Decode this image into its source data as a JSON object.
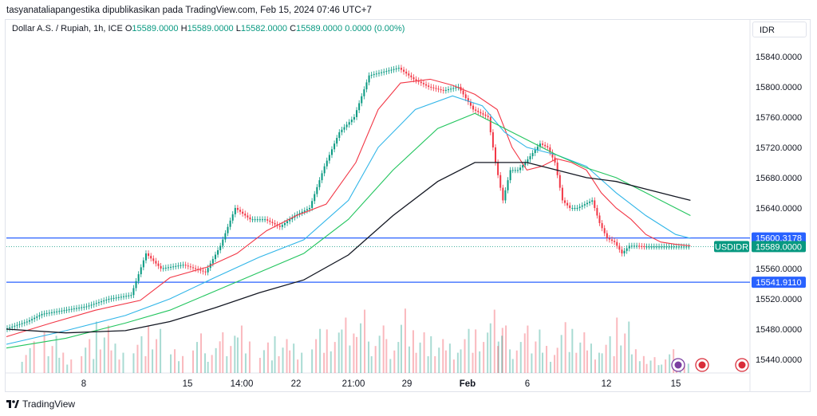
{
  "header": {
    "publisher": "tasyanataliapangestika dipublikasikan pada TradingView.com, Feb 15, 2024 07:46 UTC+7"
  },
  "legend": {
    "symbol": "Dollar A.S. / Rupiah, 1h, ICE",
    "open_label": "O",
    "open": "15589.0000",
    "high_label": "H",
    "high": "15589.0000",
    "low_label": "L",
    "low": "15582.0000",
    "close_label": "C",
    "close": "15589.0000",
    "change": "0.0000 (0.00%)"
  },
  "currency": "IDR",
  "footer": {
    "brand": "TradingView"
  },
  "colors": {
    "up": "#089981",
    "down": "#f23645",
    "ema_fast": "#f23645",
    "ema_mid": "#2fb5e8",
    "ema_slow": "#22c55e",
    "ema_long": "#131722",
    "hline": "#2962ff"
  },
  "chart_data": {
    "type": "line",
    "y_ticks": [
      "15840.0000",
      "15800.0000",
      "15760.0000",
      "15720.0000",
      "15680.0000",
      "15640.0000",
      "15600.0000",
      "15560.0000",
      "15520.0000",
      "15480.0000",
      "15440.0000"
    ],
    "x_ticks": [
      "8",
      "15",
      "14:00",
      "22",
      "21:00",
      "29",
      "Feb",
      "6",
      "12",
      "15"
    ],
    "ylim": [
      15420,
      15862
    ],
    "price_badges": [
      {
        "label": "15600.3178",
        "value": 15600.3178,
        "kind": "hline"
      },
      {
        "label": "USDIDR",
        "value": 15589
      },
      {
        "label": "15589.0000",
        "value": 15589,
        "kind": "last"
      },
      {
        "label": "15541.9110",
        "value": 15541.911,
        "kind": "hline"
      }
    ],
    "hlines": [
      15600.3178,
      15541.911
    ],
    "series": [
      {
        "role": "price",
        "x": [
          0,
          0.03,
          0.05,
          0.08,
          0.11,
          0.14,
          0.17,
          0.19,
          0.21,
          0.24,
          0.27,
          0.29,
          0.31,
          0.33,
          0.35,
          0.37,
          0.39,
          0.41,
          0.43,
          0.45,
          0.47,
          0.49,
          0.51,
          0.53,
          0.55,
          0.57,
          0.59,
          0.61,
          0.63,
          0.65,
          0.66,
          0.67,
          0.68,
          0.69,
          0.7,
          0.72,
          0.73,
          0.74,
          0.75,
          0.76,
          0.77,
          0.78,
          0.79,
          0.8,
          0.81,
          0.82,
          0.83,
          0.84,
          0.85,
          0.86,
          0.87,
          0.88,
          0.89,
          0.9,
          0.91,
          0.92
        ],
        "values": [
          15480,
          15490,
          15500,
          15505,
          15510,
          15520,
          15525,
          15580,
          15560,
          15565,
          15555,
          15590,
          15640,
          15625,
          15625,
          15615,
          15630,
          15640,
          15695,
          15740,
          15760,
          15815,
          15820,
          15825,
          15810,
          15800,
          15795,
          15800,
          15770,
          15760,
          15700,
          15650,
          15690,
          15690,
          15700,
          15725,
          15720,
          15700,
          15650,
          15640,
          15640,
          15645,
          15650,
          15620,
          15600,
          15595,
          15580,
          15590,
          15590,
          15589,
          15589,
          15589,
          15589,
          15589,
          15589,
          15589
        ]
      },
      {
        "role": "ema_fast",
        "x": [
          0,
          0.06,
          0.12,
          0.18,
          0.22,
          0.27,
          0.31,
          0.35,
          0.39,
          0.43,
          0.47,
          0.5,
          0.53,
          0.57,
          0.6,
          0.63,
          0.66,
          0.68,
          0.7,
          0.72,
          0.74,
          0.76,
          0.78,
          0.8,
          0.82,
          0.84,
          0.86,
          0.88,
          0.9,
          0.92
        ],
        "values": [
          15470,
          15488,
          15505,
          15518,
          15548,
          15562,
          15580,
          15610,
          15630,
          15645,
          15700,
          15770,
          15805,
          15810,
          15802,
          15790,
          15770,
          15720,
          15690,
          15695,
          15705,
          15700,
          15690,
          15660,
          15640,
          15625,
          15605,
          15595,
          15592,
          15590
        ]
      },
      {
        "role": "ema_mid",
        "x": [
          0,
          0.08,
          0.16,
          0.22,
          0.28,
          0.34,
          0.4,
          0.46,
          0.5,
          0.55,
          0.6,
          0.64,
          0.67,
          0.7,
          0.74,
          0.78,
          0.82,
          0.86,
          0.9,
          0.92
        ],
        "values": [
          15460,
          15478,
          15498,
          15520,
          15548,
          15575,
          15598,
          15650,
          15720,
          15770,
          15788,
          15775,
          15740,
          15720,
          15710,
          15695,
          15660,
          15630,
          15605,
          15600
        ]
      },
      {
        "role": "ema_slow",
        "x": [
          0,
          0.08,
          0.16,
          0.22,
          0.28,
          0.34,
          0.4,
          0.46,
          0.52,
          0.58,
          0.63,
          0.66,
          0.7,
          0.74,
          0.78,
          0.82,
          0.86,
          0.9,
          0.92
        ],
        "values": [
          15455,
          15468,
          15488,
          15505,
          15530,
          15555,
          15580,
          15625,
          15690,
          15745,
          15765,
          15750,
          15730,
          15710,
          15693,
          15680,
          15660,
          15640,
          15630
        ]
      },
      {
        "role": "ema_long",
        "x": [
          0,
          0.08,
          0.16,
          0.22,
          0.28,
          0.34,
          0.4,
          0.46,
          0.52,
          0.58,
          0.63,
          0.66,
          0.7,
          0.74,
          0.78,
          0.82,
          0.86,
          0.9,
          0.92
        ],
        "values": [
          15480,
          15475,
          15478,
          15490,
          15508,
          15528,
          15545,
          15578,
          15630,
          15675,
          15700,
          15700,
          15700,
          15690,
          15680,
          15675,
          15665,
          15655,
          15650
        ]
      }
    ],
    "volume_x": [
      0.02,
      0.05,
      0.07,
      0.1,
      0.12,
      0.14,
      0.17,
      0.19,
      0.22,
      0.25,
      0.27,
      0.29,
      0.31,
      0.34,
      0.36,
      0.38,
      0.41,
      0.43,
      0.45,
      0.47,
      0.49,
      0.51,
      0.53,
      0.55,
      0.57,
      0.59,
      0.61,
      0.63,
      0.65,
      0.66,
      0.68,
      0.7,
      0.72,
      0.74,
      0.76,
      0.78,
      0.8,
      0.82,
      0.84,
      0.86,
      0.88,
      0.9
    ],
    "volume": [
      0.4,
      0.6,
      0.3,
      0.5,
      0.7,
      0.4,
      0.5,
      0.6,
      0.3,
      0.5,
      0.4,
      0.6,
      0.7,
      0.45,
      0.5,
      0.4,
      0.6,
      0.55,
      0.7,
      0.8,
      0.6,
      0.5,
      0.95,
      0.6,
      0.5,
      0.4,
      0.6,
      0.55,
      0.8,
      0.6,
      0.5,
      0.7,
      0.4,
      0.75,
      0.6,
      0.4,
      0.5,
      0.7,
      0.3,
      0.2,
      0.3,
      0.15
    ]
  }
}
